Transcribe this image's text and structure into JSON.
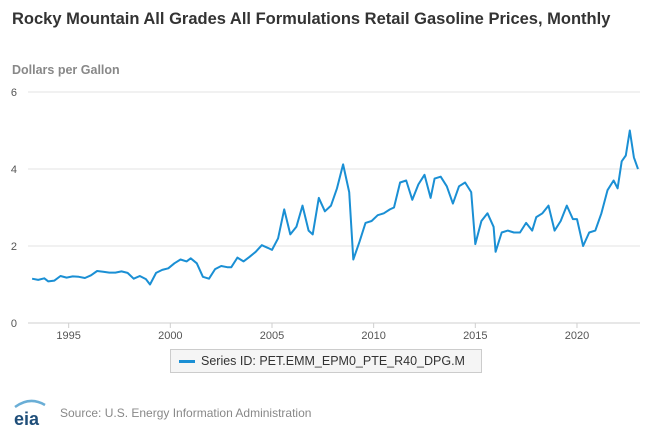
{
  "chart_data": {
    "type": "line",
    "title": "Rocky Mountain All Grades All Formulations Retail Gasoline Prices, Monthly",
    "ylabel": "Dollars per Gallon",
    "xlabel": "",
    "ylim": [
      0,
      6
    ],
    "yticks": [
      0,
      2,
      4,
      6
    ],
    "xlim": [
      1993.0,
      2023.1
    ],
    "xticks": [
      1995,
      2000,
      2005,
      2010,
      2015,
      2020
    ],
    "grid": "horizontal",
    "legend_position": "bottom",
    "series": [
      {
        "name": "Series ID: PET.EMM_EPM0_PTE_R40_DPG.M",
        "color": "#1a8fd4",
        "x": [
          1993.2,
          1993.5,
          1993.8,
          1994.0,
          1994.3,
          1994.6,
          1994.9,
          1995.2,
          1995.5,
          1995.8,
          1996.1,
          1996.4,
          1996.7,
          1997.0,
          1997.3,
          1997.6,
          1997.9,
          1998.2,
          1998.5,
          1998.8,
          1999.0,
          1999.3,
          1999.6,
          1999.9,
          2000.2,
          2000.5,
          2000.8,
          2001.0,
          2001.3,
          2001.6,
          2001.9,
          2002.2,
          2002.5,
          2002.8,
          2003.0,
          2003.3,
          2003.6,
          2003.9,
          2004.2,
          2004.5,
          2004.8,
          2005.0,
          2005.3,
          2005.6,
          2005.9,
          2006.2,
          2006.5,
          2006.8,
          2007.0,
          2007.3,
          2007.6,
          2007.9,
          2008.2,
          2008.5,
          2008.8,
          2009.0,
          2009.3,
          2009.6,
          2009.9,
          2010.2,
          2010.5,
          2010.8,
          2011.0,
          2011.3,
          2011.6,
          2011.9,
          2012.2,
          2012.5,
          2012.8,
          2013.0,
          2013.3,
          2013.6,
          2013.9,
          2014.2,
          2014.5,
          2014.8,
          2015.0,
          2015.3,
          2015.6,
          2015.9,
          2016.0,
          2016.3,
          2016.6,
          2016.9,
          2017.2,
          2017.5,
          2017.8,
          2018.0,
          2018.3,
          2018.6,
          2018.9,
          2019.2,
          2019.5,
          2019.8,
          2020.0,
          2020.3,
          2020.6,
          2020.9,
          2021.2,
          2021.5,
          2021.8,
          2022.0,
          2022.2,
          2022.4,
          2022.6,
          2022.8,
          2023.0
        ],
        "values": [
          1.15,
          1.12,
          1.16,
          1.08,
          1.1,
          1.22,
          1.18,
          1.21,
          1.2,
          1.17,
          1.24,
          1.35,
          1.33,
          1.31,
          1.31,
          1.34,
          1.3,
          1.15,
          1.22,
          1.14,
          1.0,
          1.3,
          1.38,
          1.42,
          1.55,
          1.65,
          1.6,
          1.68,
          1.55,
          1.2,
          1.15,
          1.4,
          1.48,
          1.45,
          1.45,
          1.7,
          1.6,
          1.72,
          1.85,
          2.02,
          1.95,
          1.9,
          2.2,
          2.95,
          2.3,
          2.5,
          3.05,
          2.4,
          2.3,
          3.25,
          2.9,
          3.05,
          3.5,
          4.12,
          3.4,
          1.65,
          2.1,
          2.6,
          2.65,
          2.8,
          2.85,
          2.95,
          3.0,
          3.65,
          3.7,
          3.2,
          3.6,
          3.85,
          3.25,
          3.75,
          3.8,
          3.55,
          3.1,
          3.55,
          3.65,
          3.4,
          2.05,
          2.65,
          2.85,
          2.5,
          1.85,
          2.35,
          2.4,
          2.35,
          2.35,
          2.6,
          2.4,
          2.75,
          2.85,
          3.05,
          2.4,
          2.65,
          3.05,
          2.7,
          2.7,
          2.0,
          2.35,
          2.4,
          2.85,
          3.45,
          3.7,
          3.5,
          4.2,
          4.35,
          5.0,
          4.3,
          4.0
        ]
      }
    ]
  },
  "footer": {
    "logo_text": "eia",
    "source": "Source: U.S. Energy Information Administration"
  }
}
